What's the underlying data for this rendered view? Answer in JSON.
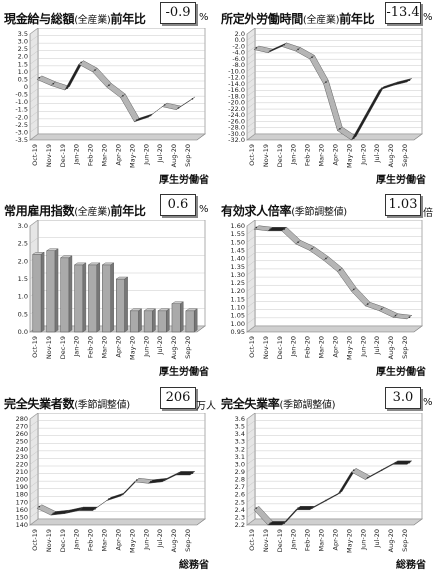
{
  "charts": [
    {
      "title": "現金給与総額",
      "subtitle": "(全産業)",
      "suffix": "前年比",
      "value": "-0.9",
      "unit": "%",
      "source": "厚生労働省"
    },
    {
      "title": "所定外労働時間",
      "subtitle": "(全産業)",
      "suffix": "前年比",
      "value": "-13.4",
      "unit": "%",
      "source": "厚生労働省"
    },
    {
      "title": "常用雇用指数",
      "subtitle": "(全産業)",
      "suffix": "前年比",
      "value": "0.6",
      "unit": "%",
      "source": "厚生労働省"
    },
    {
      "title": "有効求人倍率",
      "subtitle": "(季節調整値)",
      "suffix": "",
      "value": "1.03",
      "unit": "倍",
      "source": "厚生労働省"
    },
    {
      "title": "完全失業者数",
      "subtitle": "(季節調整値)",
      "suffix": "",
      "value": "206",
      "unit": "万人",
      "source": "総務省"
    },
    {
      "title": "完全失業率",
      "subtitle": "(季節調整値)",
      "suffix": "",
      "value": "3.0",
      "unit": "%",
      "source": "総務省"
    }
  ],
  "chart_data": [
    {
      "type": "area",
      "categories": [
        "Oct-19",
        "Nov-19",
        "Dec-19",
        "Jan-20",
        "Feb-20",
        "Mar-20",
        "Apr-20",
        "May-20",
        "Jun-20",
        "Jul-20",
        "Aug-20",
        "Sep-20"
      ],
      "values": [
        0.5,
        0.1,
        -0.2,
        1.5,
        1.0,
        0.0,
        -0.7,
        -2.3,
        -2.0,
        -1.3,
        -1.5,
        -0.9
      ],
      "yticks": [
        "3.5",
        "3.0",
        "2.5",
        "2.0",
        "1.5",
        "1.0",
        "0.5",
        "0",
        "-0.5",
        "-1.0",
        "-1.5",
        "-2.0",
        "-2.5",
        "-3.0",
        "-3.5"
      ],
      "ylim": [
        -3.5,
        3.5
      ]
    },
    {
      "type": "area",
      "categories": [
        "Oct-19",
        "Nov-19",
        "Dec-19",
        "Jan-20",
        "Feb-20",
        "Mar-20",
        "Apr-20",
        "May-20",
        "Jun-20",
        "Jul-20",
        "Aug-20",
        "Sep-20"
      ],
      "values": [
        -3.0,
        -4.0,
        -2.0,
        -3.5,
        -6.0,
        -14.0,
        -29.0,
        -32.0,
        -24.0,
        -16.0,
        -14.5,
        -13.4
      ],
      "yticks": [
        "2.0",
        "0.0",
        "-2.0",
        "-4.0",
        "-6.0",
        "-8.0",
        "-10.0",
        "-12.0",
        "-14.0",
        "-16.0",
        "-18.0",
        "-20.0",
        "-22.0",
        "-24.0",
        "-26.0",
        "-28.0",
        "-30.0",
        "-32.0"
      ],
      "ylim": [
        -32,
        2
      ]
    },
    {
      "type": "bar",
      "categories": [
        "Oct-19",
        "Nov-19",
        "Dec-19",
        "Jan-20",
        "Feb-20",
        "Mar-20",
        "Apr-20",
        "May-20",
        "Jun-20",
        "Jul-20",
        "Aug-20",
        "Sep-20"
      ],
      "values": [
        2.2,
        2.3,
        2.1,
        1.9,
        1.9,
        1.9,
        1.5,
        0.6,
        0.6,
        0.6,
        0.8,
        0.6
      ],
      "yticks": [
        "3.0",
        "2.5",
        "2.0",
        "1.5",
        "1.0",
        "0.5",
        "0.0"
      ],
      "ylim": [
        0,
        3.0
      ]
    },
    {
      "type": "area",
      "categories": [
        "Oct-19",
        "Nov-19",
        "Dec-19",
        "Jan-20",
        "Feb-20",
        "Mar-20",
        "Apr-20",
        "May-20",
        "Jun-20",
        "Jul-20",
        "Aug-20",
        "Sep-20"
      ],
      "values": [
        1.58,
        1.57,
        1.57,
        1.49,
        1.45,
        1.39,
        1.32,
        1.2,
        1.11,
        1.08,
        1.04,
        1.03
      ],
      "yticks": [
        "1.60",
        "1.55",
        "1.50",
        "1.45",
        "1.40",
        "1.35",
        "1.30",
        "1.25",
        "1.20",
        "1.15",
        "1.10",
        "1.05",
        "1.00",
        "0.95"
      ],
      "ylim": [
        0.95,
        1.6
      ]
    },
    {
      "type": "area",
      "categories": [
        "Oct-19",
        "Nov-19",
        "Dec-19",
        "Jan-20",
        "Feb-20",
        "Mar-20",
        "Apr-20",
        "May-20",
        "Jun-20",
        "Jul-20",
        "Aug-20",
        "Sep-20"
      ],
      "values": [
        162,
        153,
        155,
        159,
        159,
        172,
        178,
        197,
        195,
        197,
        206,
        206
      ],
      "yticks": [
        "280",
        "270",
        "260",
        "250",
        "240",
        "230",
        "220",
        "210",
        "200",
        "190",
        "180",
        "170",
        "160",
        "150",
        "140"
      ],
      "ylim": [
        140,
        280
      ]
    },
    {
      "type": "area",
      "categories": [
        "Oct-19",
        "Nov-19",
        "Dec-19",
        "Jan-20",
        "Feb-20",
        "Mar-20",
        "Apr-20",
        "May-20",
        "Jun-20",
        "Jul-20",
        "Aug-20",
        "Sep-20"
      ],
      "values": [
        2.4,
        2.2,
        2.2,
        2.4,
        2.4,
        2.5,
        2.6,
        2.9,
        2.8,
        2.9,
        3.0,
        3.0
      ],
      "yticks": [
        "3.6",
        "3.5",
        "3.4",
        "3.3",
        "3.2",
        "3.1",
        "3.0",
        "2.9",
        "2.8",
        "2.7",
        "2.6",
        "2.5",
        "2.4",
        "2.3",
        "2.2"
      ],
      "ylim": [
        2.2,
        3.6
      ]
    }
  ]
}
